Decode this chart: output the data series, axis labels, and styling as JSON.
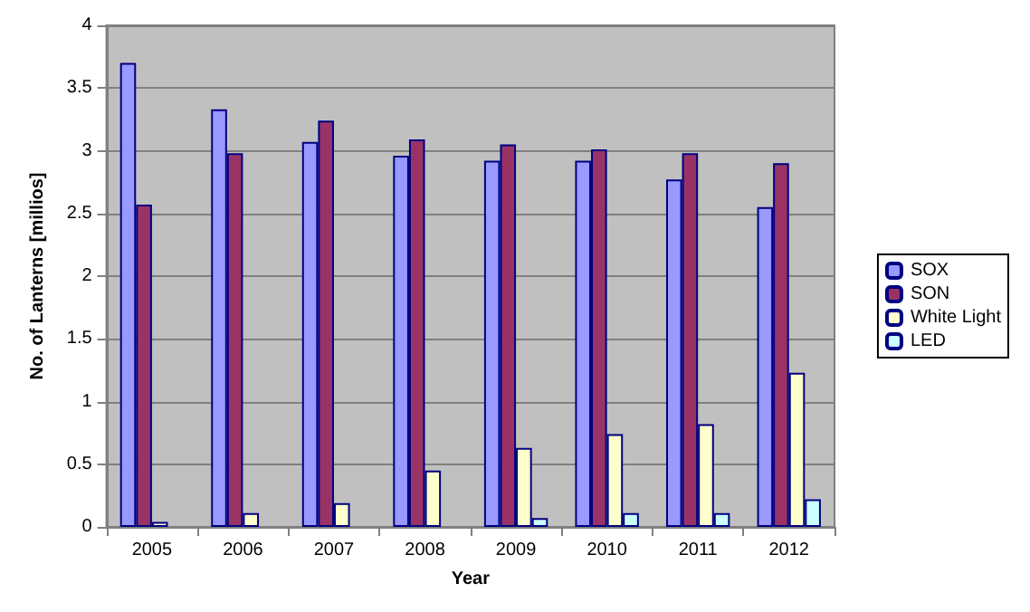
{
  "chart_data": {
    "type": "bar",
    "xlabel": "Year",
    "ylabel": "No. of Lanterns [millios]",
    "categories": [
      "2005",
      "2006",
      "2007",
      "2008",
      "2009",
      "2010",
      "2011",
      "2012"
    ],
    "series": [
      {
        "name": "SOX",
        "color": "#9999ff",
        "values": [
          3.7,
          3.33,
          3.07,
          2.96,
          2.92,
          2.92,
          2.77,
          2.55
        ]
      },
      {
        "name": "SON",
        "color": "#993366",
        "values": [
          2.57,
          2.98,
          3.24,
          3.09,
          3.05,
          3.01,
          2.98,
          2.9
        ]
      },
      {
        "name": "White Light",
        "color": "#ffffcc",
        "values": [
          0.04,
          0.11,
          0.19,
          0.45,
          0.63,
          0.74,
          0.82,
          1.23
        ]
      },
      {
        "name": "LED",
        "color": "#ccffff",
        "values": [
          null,
          null,
          null,
          null,
          0.07,
          0.11,
          0.11,
          0.22
        ]
      }
    ],
    "ylim": [
      0,
      4
    ],
    "yticks": [
      0,
      0.5,
      1,
      1.5,
      2,
      2.5,
      3,
      3.5,
      4
    ],
    "grid": "y",
    "legend": "right"
  }
}
